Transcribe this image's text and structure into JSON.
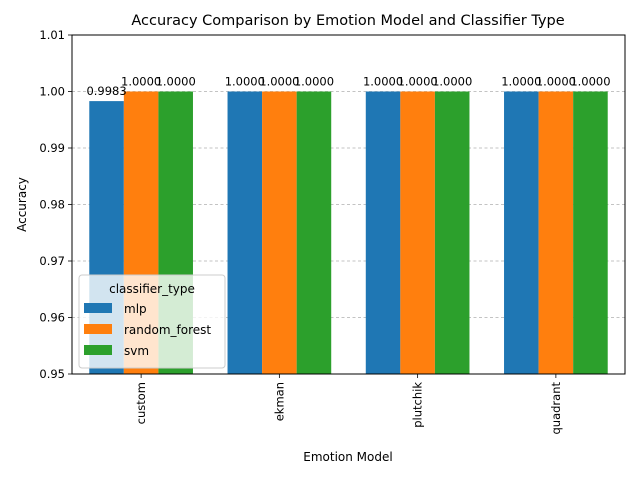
{
  "chart_data": {
    "type": "bar",
    "title": "Accuracy Comparison by Emotion Model and Classifier Type",
    "xlabel": "Emotion Model",
    "ylabel": "Accuracy",
    "categories": [
      "custom",
      "ekman",
      "plutchik",
      "quadrant"
    ],
    "series": [
      {
        "name": "mlp",
        "color": "#1f77b4",
        "values": [
          0.9983,
          1.0,
          1.0,
          1.0
        ],
        "labels": [
          "0.9983",
          "1.0000",
          "1.0000",
          "1.0000"
        ]
      },
      {
        "name": "random_forest",
        "color": "#ff7f0e",
        "values": [
          1.0,
          1.0,
          1.0,
          1.0
        ],
        "labels": [
          "1.0000",
          "1.0000",
          "1.0000",
          "1.0000"
        ]
      },
      {
        "name": "svm",
        "color": "#2ca02c",
        "values": [
          1.0,
          1.0,
          1.0,
          1.0
        ],
        "labels": [
          "1.0000",
          "1.0000",
          "1.0000",
          "1.0000"
        ]
      }
    ],
    "ylim": [
      0.95,
      1.01
    ],
    "yticks": [
      "0.95",
      "0.96",
      "0.97",
      "0.98",
      "0.99",
      "1.00",
      "1.01"
    ],
    "grid": "y-dashed",
    "legend": {
      "title": "classifier_type",
      "placement": "lower-left"
    }
  }
}
